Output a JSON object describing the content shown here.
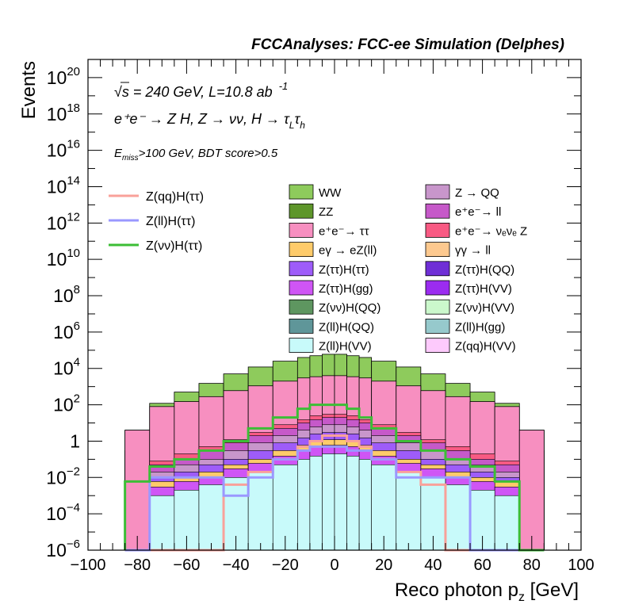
{
  "header": {
    "title": "FCCAnalyses: FCC-ee Simulation (Delphes)",
    "energy_label": "√s = 240 GeV, L=10.8 ab",
    "energy_exponent": "-1",
    "process_label": "e⁺e⁻ → Z H, Z → νν, H → τ",
    "process_sub1": "L",
    "process_tau2": "τ",
    "process_sub2": "h",
    "cut_prefix": "E",
    "cut_sub": "miss",
    "cut_rest": ">100 GeV, BDT score>0.5"
  },
  "chart_data": {
    "type": "bar",
    "stacked": true,
    "xlabel": "Reco photon p",
    "xlabel_sub": "z",
    "xlabel_unit": " [GeV]",
    "ylabel": "Events",
    "xlim": [
      -100,
      100
    ],
    "ylim": [
      1e-06,
      1e+21
    ],
    "y_log_scale": true,
    "x_ticks": [
      "−100",
      "−80",
      "−60",
      "−40",
      "−20",
      "0",
      "20",
      "40",
      "60",
      "80",
      "100"
    ],
    "y_ticks": [
      {
        "base": "10",
        "exp": "−6"
      },
      {
        "base": "10",
        "exp": "−4"
      },
      {
        "base": "10",
        "exp": "−2"
      },
      {
        "base": "1",
        "exp": ""
      },
      {
        "base": "10",
        "exp": "2"
      },
      {
        "base": "10",
        "exp": "4"
      },
      {
        "base": "10",
        "exp": "6"
      },
      {
        "base": "10",
        "exp": "8"
      },
      {
        "base": "10",
        "exp": "10"
      },
      {
        "base": "10",
        "exp": "12"
      },
      {
        "base": "10",
        "exp": "14"
      },
      {
        "base": "10",
        "exp": "16"
      },
      {
        "base": "10",
        "exp": "18"
      },
      {
        "base": "10",
        "exp": "20"
      }
    ],
    "bin_edges": [
      -85,
      -75,
      -65,
      -55,
      -45,
      -35,
      -25,
      -15,
      -10,
      -5,
      0,
      5,
      10,
      15,
      25,
      35,
      45,
      55,
      65,
      75,
      85
    ],
    "stack_totals": [
      {
        "name": "ee→ττ",
        "color": "#f78fc0",
        "values": [
          4,
          80,
          150,
          280,
          600,
          1100,
          2000,
          3000,
          3500,
          4000,
          4000,
          3500,
          3000,
          2000,
          1100,
          600,
          280,
          150,
          80,
          4
        ]
      },
      {
        "name": "ZZ",
        "color": "#5e962a",
        "values": [
          0.3,
          1.2,
          2.5,
          6,
          15,
          40,
          100,
          200,
          300,
          350,
          350,
          300,
          200,
          100,
          40,
          15,
          6,
          2.5,
          1.2,
          0.3
        ]
      },
      {
        "name": "WW",
        "color": "#8ecb5c",
        "values": [
          4,
          120,
          500,
          1500,
          5000,
          12000,
          25000,
          40000,
          50000,
          60000,
          60000,
          50000,
          40000,
          25000,
          12000,
          5000,
          1500,
          500,
          120,
          4
        ]
      }
    ],
    "inner_bands": [
      {
        "name": "Z(ll)H(VV)",
        "color": "#c8fafa",
        "values": [
          0,
          0.001,
          0.002,
          0.004,
          0.01,
          0.02,
          0.05,
          0.1,
          0.15,
          0.2,
          0.2,
          0.15,
          0.1,
          0.05,
          0.02,
          0.01,
          0.004,
          0.002,
          0.001,
          0
        ]
      },
      {
        "name": "Z(ττ)H(gg)",
        "color": "#cf55f5",
        "values": [
          0,
          0.003,
          0.006,
          0.01,
          0.03,
          0.06,
          0.15,
          0.3,
          0.5,
          0.6,
          0.6,
          0.5,
          0.3,
          0.15,
          0.06,
          0.03,
          0.01,
          0.006,
          0.003,
          0
        ]
      },
      {
        "name": "eγ → eZ(ll)",
        "color": "#fecb6a",
        "values": [
          0,
          0.006,
          0.01,
          0.02,
          0.05,
          0.1,
          0.3,
          0.6,
          0.9,
          1.2,
          1.2,
          0.9,
          0.6,
          0.3,
          0.1,
          0.05,
          0.02,
          0.01,
          0.006,
          0
        ]
      },
      {
        "name": "Z(ττ)H(ττ)",
        "color": "#9e5cf9",
        "values": [
          0,
          0.01,
          0.02,
          0.05,
          0.1,
          0.3,
          0.8,
          1.5,
          2.5,
          3,
          3,
          2.5,
          1.5,
          0.8,
          0.3,
          0.1,
          0.05,
          0.02,
          0.01,
          0
        ]
      },
      {
        "name": "Z → QQ",
        "color": "#c896cb",
        "values": [
          0,
          0.02,
          0.05,
          0.1,
          0.3,
          0.8,
          2,
          4,
          6,
          8,
          8,
          6,
          4,
          2,
          0.8,
          0.3,
          0.1,
          0.05,
          0.02,
          0
        ]
      },
      {
        "name": "e⁺e⁻→ ll",
        "color": "#c659c9",
        "values": [
          0,
          0.05,
          0.1,
          0.3,
          0.8,
          2,
          5,
          10,
          15,
          20,
          20,
          15,
          10,
          5,
          2,
          0.8,
          0.3,
          0.1,
          0.05,
          0
        ]
      },
      {
        "name": "e⁺e⁻→ νₑνₑ Z",
        "color": "#f85a83",
        "values": [
          0,
          0.08,
          0.2,
          0.5,
          1.2,
          3,
          8,
          15,
          25,
          30,
          30,
          25,
          15,
          8,
          3,
          1.2,
          0.5,
          0.2,
          0.08,
          0
        ]
      }
    ],
    "lines": [
      {
        "name": "Z(qq)H(ττ)",
        "color": "#f9a19a",
        "values": [
          0,
          0,
          0,
          0,
          0.004,
          0.02,
          0.1,
          0.5,
          1,
          2,
          2,
          1,
          0.5,
          0.1,
          0.02,
          0.004,
          0,
          0,
          0,
          0
        ]
      },
      {
        "name": "Z(ll)H(ττ)",
        "color": "#9a98ff",
        "values": [
          0,
          0.01,
          0.01,
          0.01,
          0.001,
          0.01,
          0.1,
          0.3,
          0.5,
          0.5,
          0.5,
          0.3,
          0.3,
          0.1,
          0.01,
          0.01,
          0.01,
          0,
          0,
          0
        ]
      },
      {
        "name": "Z(νν)H(ττ)",
        "color": "#3cbe36",
        "values": [
          0.006,
          0.04,
          0.1,
          0.3,
          1,
          5,
          20,
          60,
          100,
          100,
          100,
          60,
          20,
          5,
          1,
          0.3,
          0.1,
          0.04,
          0.006,
          0
        ]
      }
    ],
    "legend_lines": [
      {
        "label": "Z(qq)H(ττ)",
        "color": "#f9a19a"
      },
      {
        "label": "Z(ll)H(ττ)",
        "color": "#9a98ff"
      },
      {
        "label": "Z(νν)H(ττ)",
        "color": "#3cbe36"
      }
    ],
    "legend_boxes": [
      {
        "label": "WW",
        "color": "#8ecb5c"
      },
      {
        "label": "Z → QQ",
        "color": "#c896cb"
      },
      {
        "label": "ZZ",
        "color": "#5e962a"
      },
      {
        "label": "e⁺e⁻→ ll",
        "color": "#c659c9"
      },
      {
        "label": "e⁺e⁻→ ττ",
        "color": "#f78fc0"
      },
      {
        "label": "e⁺e⁻→ νₑνₑ Z",
        "color": "#f85a83"
      },
      {
        "label": "eγ → eZ(ll)",
        "color": "#fecb6a"
      },
      {
        "label": "γγ → ll",
        "color": "#fdc98f"
      },
      {
        "label": "Z(ττ)H(ττ)",
        "color": "#9e5cf9"
      },
      {
        "label": "Z(ττ)H(QQ)",
        "color": "#6f2fd6"
      },
      {
        "label": "Z(ττ)H(gg)",
        "color": "#cf55f5"
      },
      {
        "label": "Z(ττ)H(VV)",
        "color": "#9b2cf0"
      },
      {
        "label": "Z(νν)H(QQ)",
        "color": "#5e9660"
      },
      {
        "label": "Z(νν)H(VV)",
        "color": "#cbf8cc"
      },
      {
        "label": "Z(ll)H(QQ)",
        "color": "#5f9699"
      },
      {
        "label": "Z(ll)H(gg)",
        "color": "#96c9cc"
      },
      {
        "label": "Z(ll)H(VV)",
        "color": "#c8fafa"
      },
      {
        "label": "Z(qq)H(VV)",
        "color": "#fdcafc"
      }
    ]
  }
}
